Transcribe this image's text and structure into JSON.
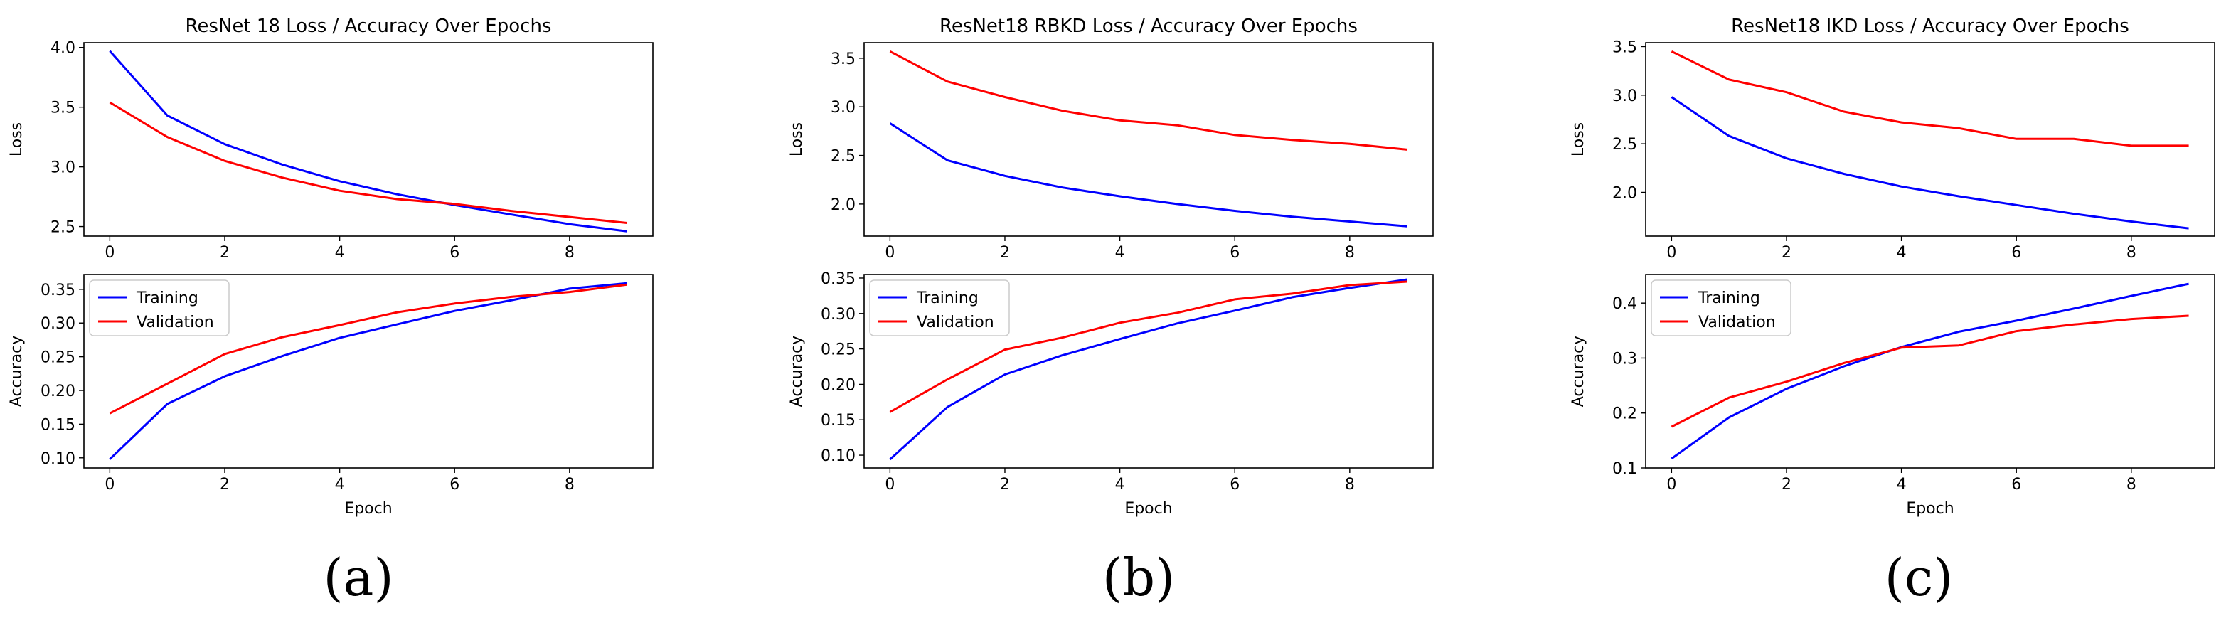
{
  "panel_labels": [
    "(a)",
    "(b)",
    "(c)"
  ],
  "colors": {
    "training": "#0000ff",
    "validation": "#ff0000"
  },
  "chart_data": [
    {
      "type": "line",
      "title": "ResNet 18 Loss / Accuracy Over Epochs",
      "loss": {
        "ylabel": "Loss",
        "xlabel": "",
        "x": [
          0,
          1,
          2,
          3,
          4,
          5,
          6,
          7,
          8,
          9
        ],
        "xlim": [
          -0.45,
          9.45
        ],
        "ylim": [
          2.42,
          4.04
        ],
        "xticks": [
          0,
          2,
          4,
          6,
          8
        ],
        "yticks": [
          2.5,
          3.0,
          3.5,
          4.0
        ],
        "series": [
          {
            "name": "Training",
            "values": [
              3.97,
              3.43,
              3.19,
              3.02,
              2.88,
              2.77,
              2.68,
              2.6,
              2.52,
              2.46
            ]
          },
          {
            "name": "Validation",
            "values": [
              3.54,
              3.25,
              3.05,
              2.91,
              2.8,
              2.73,
              2.69,
              2.63,
              2.58,
              2.53
            ]
          }
        ]
      },
      "accuracy": {
        "ylabel": "Accuracy",
        "xlabel": "Epoch",
        "x": [
          0,
          1,
          2,
          3,
          4,
          5,
          6,
          7,
          8,
          9
        ],
        "xlim": [
          -0.45,
          9.45
        ],
        "ylim": [
          0.085,
          0.372
        ],
        "xticks": [
          0,
          2,
          4,
          6,
          8
        ],
        "yticks": [
          0.1,
          0.15,
          0.2,
          0.25,
          0.3,
          0.35
        ],
        "legend": [
          "Training",
          "Validation"
        ],
        "legend_loc": "upper-left",
        "series": [
          {
            "name": "Training",
            "values": [
              0.098,
              0.18,
              0.221,
              0.251,
              0.278,
              0.298,
              0.318,
              0.334,
              0.351,
              0.359
            ]
          },
          {
            "name": "Validation",
            "values": [
              0.166,
              0.21,
              0.254,
              0.279,
              0.297,
              0.316,
              0.329,
              0.339,
              0.346,
              0.357
            ]
          }
        ]
      }
    },
    {
      "type": "line",
      "title": "ResNet18 RBKD Loss / Accuracy Over Epochs",
      "loss": {
        "ylabel": "Loss",
        "xlabel": "",
        "x": [
          0,
          1,
          2,
          3,
          4,
          5,
          6,
          7,
          8,
          9
        ],
        "xlim": [
          -0.45,
          9.45
        ],
        "ylim": [
          1.67,
          3.66
        ],
        "xticks": [
          0,
          2,
          4,
          6,
          8
        ],
        "yticks": [
          2.0,
          2.5,
          3.0,
          3.5
        ],
        "series": [
          {
            "name": "Training",
            "values": [
              2.83,
              2.45,
              2.29,
              2.17,
              2.08,
              2.0,
              1.93,
              1.87,
              1.82,
              1.77
            ]
          },
          {
            "name": "Validation",
            "values": [
              3.57,
              3.26,
              3.1,
              2.96,
              2.86,
              2.81,
              2.71,
              2.66,
              2.62,
              2.56
            ]
          }
        ]
      },
      "accuracy": {
        "ylabel": "Accuracy",
        "xlabel": "Epoch",
        "x": [
          0,
          1,
          2,
          3,
          4,
          5,
          6,
          7,
          8,
          9
        ],
        "xlim": [
          -0.45,
          9.45
        ],
        "ylim": [
          0.082,
          0.355
        ],
        "xticks": [
          0,
          2,
          4,
          6,
          8
        ],
        "yticks": [
          0.1,
          0.15,
          0.2,
          0.25,
          0.3,
          0.35
        ],
        "legend": [
          "Training",
          "Validation"
        ],
        "legend_loc": "upper-left",
        "series": [
          {
            "name": "Training",
            "values": [
              0.094,
              0.168,
              0.214,
              0.241,
              0.264,
              0.286,
              0.304,
              0.323,
              0.336,
              0.348
            ]
          },
          {
            "name": "Validation",
            "values": [
              0.161,
              0.207,
              0.249,
              0.266,
              0.287,
              0.301,
              0.32,
              0.328,
              0.34,
              0.345
            ]
          }
        ]
      }
    },
    {
      "type": "line",
      "title": "ResNet18 IKD Loss / Accuracy Over Epochs",
      "loss": {
        "ylabel": "Loss",
        "xlabel": "",
        "x": [
          0,
          1,
          2,
          3,
          4,
          5,
          6,
          7,
          8,
          9
        ],
        "xlim": [
          -0.45,
          9.45
        ],
        "ylim": [
          1.55,
          3.54
        ],
        "xticks": [
          0,
          2,
          4,
          6,
          8
        ],
        "yticks": [
          2.0,
          2.5,
          3.0,
          3.5
        ],
        "series": [
          {
            "name": "Training",
            "values": [
              2.98,
              2.58,
              2.35,
              2.19,
              2.06,
              1.96,
              1.87,
              1.78,
              1.7,
              1.63
            ]
          },
          {
            "name": "Validation",
            "values": [
              3.45,
              3.16,
              3.03,
              2.83,
              2.72,
              2.66,
              2.55,
              2.55,
              2.48,
              2.48
            ]
          }
        ]
      },
      "accuracy": {
        "ylabel": "Accuracy",
        "xlabel": "Epoch",
        "x": [
          0,
          1,
          2,
          3,
          4,
          5,
          6,
          7,
          8,
          9
        ],
        "xlim": [
          -0.45,
          9.45
        ],
        "ylim": [
          0.1,
          0.452
        ],
        "xticks": [
          0,
          2,
          4,
          6,
          8
        ],
        "yticks": [
          0.1,
          0.2,
          0.3,
          0.4
        ],
        "legend": [
          "Training",
          "Validation"
        ],
        "legend_loc": "upper-left",
        "series": [
          {
            "name": "Training",
            "values": [
              0.117,
              0.192,
              0.244,
              0.285,
              0.32,
              0.348,
              0.368,
              0.39,
              0.413,
              0.435
            ]
          },
          {
            "name": "Validation",
            "values": [
              0.175,
              0.228,
              0.257,
              0.291,
              0.319,
              0.323,
              0.349,
              0.361,
              0.371,
              0.377
            ]
          }
        ]
      }
    }
  ]
}
